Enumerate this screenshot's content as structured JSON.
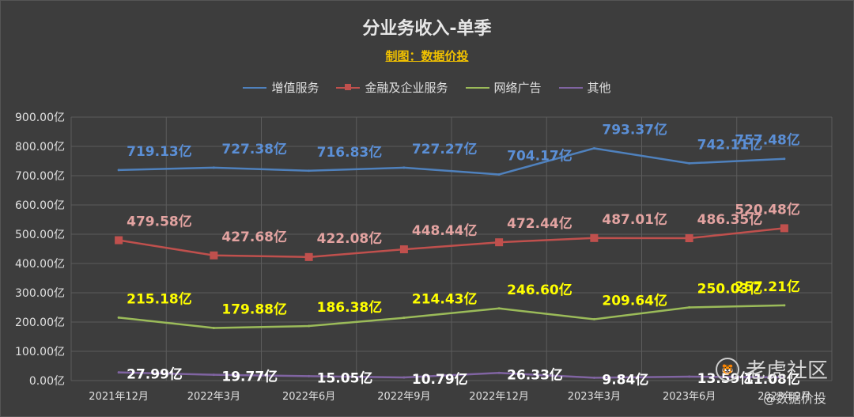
{
  "chart_data": {
    "type": "line",
    "title": "分业务收入-单季",
    "subtitle": "制图：数据价投",
    "categories": [
      "2021年12月",
      "2022年3月",
      "2022年6月",
      "2022年9月",
      "2022年12月",
      "2023年3月",
      "2023年6月",
      "2023年9月"
    ],
    "y_ticks": [
      "900.00亿",
      "800.00亿",
      "700.00亿",
      "600.00亿",
      "500.00亿",
      "400.00亿",
      "300.00亿",
      "200.00亿",
      "100.00亿",
      "0.00亿"
    ],
    "ylim": [
      0,
      900
    ],
    "grid": true,
    "legend_position": "top",
    "series": [
      {
        "name": "增值服务",
        "color": "#4f81bd",
        "label_color": "#5b8fd6",
        "marker": "none",
        "values": [
          719.13,
          727.38,
          716.83,
          727.27,
          704.17,
          793.37,
          742.11,
          757.48
        ],
        "labels": [
          "719.13亿",
          "727.38亿",
          "716.83亿",
          "727.27亿",
          "704.17亿",
          "793.37亿",
          "742.11亿",
          "757.48亿"
        ]
      },
      {
        "name": "金融及企业服务",
        "color": "#c0504d",
        "label_color": "#e3a3a1",
        "marker": "square",
        "values": [
          479.58,
          427.68,
          422.08,
          448.44,
          472.44,
          487.01,
          486.35,
          520.48
        ],
        "labels": [
          "479.58亿",
          "427.68亿",
          "422.08亿",
          "448.44亿",
          "472.44亿",
          "487.01亿",
          "486.35亿",
          "520.48亿"
        ]
      },
      {
        "name": "网络广告",
        "color": "#9bbb59",
        "label_color": "#ffff00",
        "marker": "none",
        "values": [
          215.18,
          179.88,
          186.38,
          214.43,
          246.6,
          209.64,
          250.03,
          257.21
        ],
        "labels": [
          "215.18亿",
          "179.88亿",
          "186.38亿",
          "214.43亿",
          "246.60亿",
          "209.64亿",
          "250.03亿",
          "257.21亿"
        ]
      },
      {
        "name": "其他",
        "color": "#8064a2",
        "label_color": "#ffffff",
        "marker": "none",
        "values": [
          27.99,
          19.77,
          15.05,
          10.79,
          26.33,
          9.84,
          13.59,
          11.08
        ],
        "labels": [
          "27.99亿",
          "19.77亿",
          "15.05亿",
          "10.79亿",
          "26.33亿",
          "9.84亿",
          "13.59亿",
          "11.08亿"
        ]
      }
    ]
  },
  "watermark": {
    "brand": "老虎社区",
    "author": "@数据价投",
    "icon": "tiger-logo-icon"
  }
}
